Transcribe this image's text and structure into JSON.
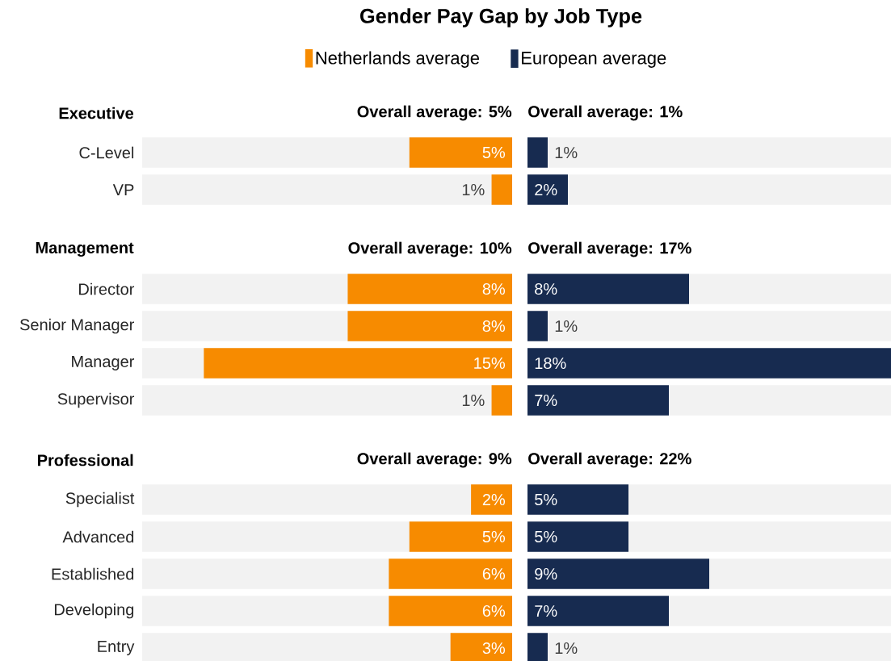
{
  "chart_data": [
    {
      "type": "bar",
      "orientation": "horizontal",
      "title": "Gender Pay Gap by Job Type",
      "subtitle": "Executive",
      "annotations": [
        "Overall average: 5%"
      ],
      "categories": [
        "C-Level",
        "VP"
      ],
      "xlim": [
        18,
        0
      ],
      "tick_labels": "y",
      "legend": "top",
      "series": [
        {
          "name": "Netherlands average",
          "color": "#f78b00",
          "values": [
            5,
            1
          ],
          "value_labels": [
            "5%",
            "1%"
          ]
        }
      ]
    },
    {
      "type": "bar",
      "orientation": "horizontal",
      "annotations": [
        "Overall average: 1%"
      ],
      "categories": [
        null,
        null
      ],
      "xlim": [
        0,
        18
      ],
      "tick_labels": false,
      "legend": "top",
      "series": [
        {
          "name": "European average",
          "color": "#172b50",
          "values": [
            1,
            2
          ],
          "value_labels": [
            "1%",
            "2%"
          ]
        }
      ]
    },
    {
      "type": "bar",
      "orientation": "horizontal",
      "subtitle": "Management",
      "annotations": [
        "Overall average: 10%"
      ],
      "categories": [
        "Director",
        "Senior Manager",
        "Manager",
        "Supervisor"
      ],
      "xlim": [
        18,
        0
      ],
      "tick_labels": "y",
      "series": [
        {
          "color": "#f78b00",
          "values": [
            8,
            8,
            15,
            1
          ],
          "value_labels": [
            "8%",
            "8%",
            "15%",
            "1%"
          ]
        }
      ]
    },
    {
      "type": "bar",
      "orientation": "horizontal",
      "annotations": [
        "Overall average: 17%"
      ],
      "categories": [
        null,
        null,
        null,
        null
      ],
      "xlim": [
        0,
        18
      ],
      "tick_labels": false,
      "series": [
        {
          "color": "#172b50",
          "values": [
            8,
            1,
            18,
            7
          ],
          "value_labels": [
            "8%",
            "1%",
            "18%",
            "7%"
          ]
        }
      ]
    },
    {
      "type": "bar",
      "orientation": "horizontal",
      "subtitle": "Professional",
      "annotations": [
        "Overall average: 9%"
      ],
      "categories": [
        "Specialist",
        "Advanced",
        "Established",
        "Developing",
        "Entry"
      ],
      "xlim": [
        18,
        0
      ],
      "tick_labels": "y",
      "series": [
        {
          "color": "#f78b00",
          "values": [
            2,
            5,
            6,
            6,
            3
          ],
          "value_labels": [
            "2%",
            "5%",
            "6%",
            "6%",
            "3%"
          ]
        }
      ]
    },
    {
      "type": "bar",
      "orientation": "horizontal",
      "annotations": [
        "Overall average: 22%"
      ],
      "categories": [
        null,
        null,
        null,
        null,
        null
      ],
      "xlim": [
        0,
        18
      ],
      "tick_labels": false,
      "series": [
        {
          "color": "#172b50",
          "values": [
            5,
            5,
            9,
            7,
            1
          ],
          "value_labels": [
            "5%",
            "5%",
            "9%",
            "7%",
            "1%"
          ]
        }
      ]
    }
  ]
}
